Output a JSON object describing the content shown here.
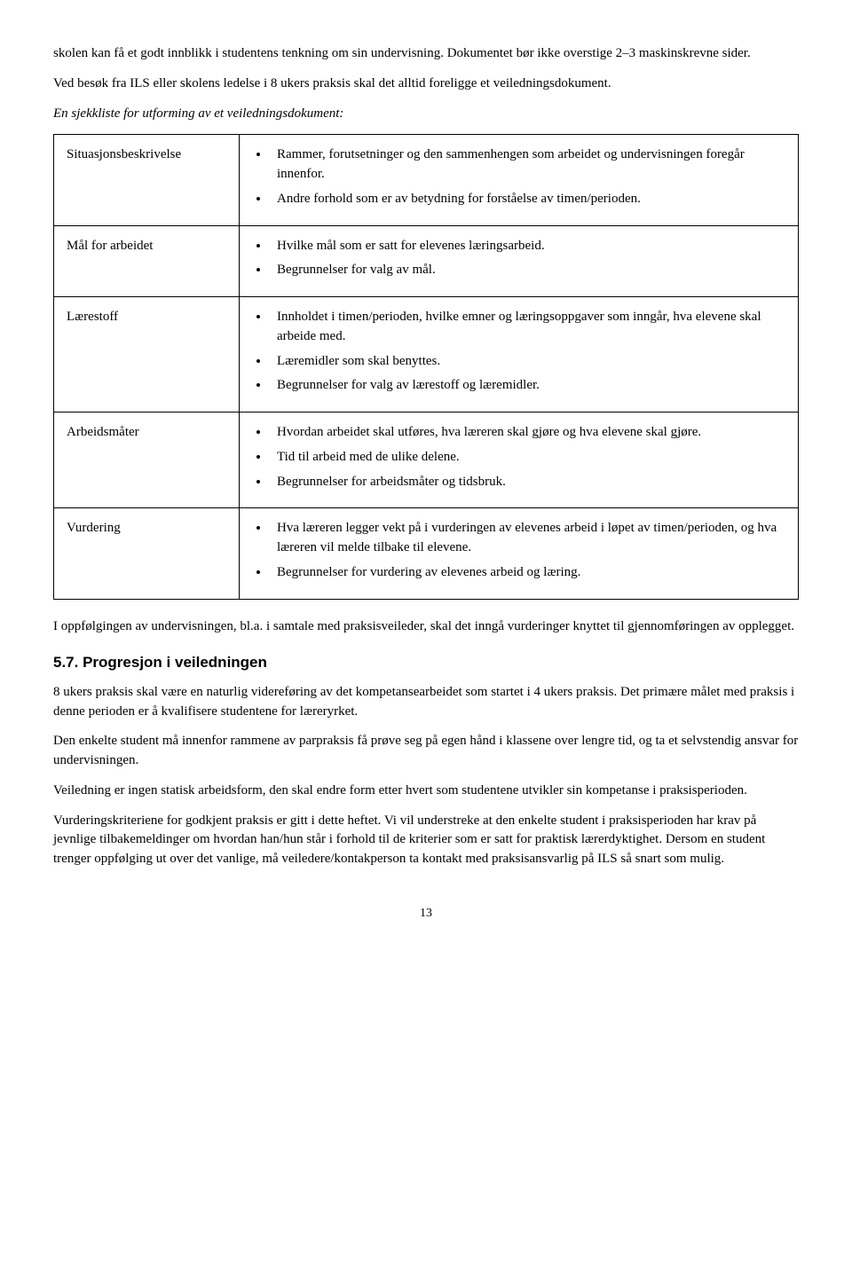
{
  "intro": {
    "p1": "skolen kan få et godt innblikk i studentens tenkning om sin undervisning. Dokumentet bør ikke overstige 2–3 maskinskrevne sider.",
    "p2": "Ved besøk fra ILS eller skolens ledelse i 8 ukers praksis skal det alltid foreligge et veiledningsdokument.",
    "p3": "En sjekkliste for utforming av et veiledningsdokument:"
  },
  "table": {
    "rows": [
      {
        "label": "Situasjonsbeskrivelse",
        "items": [
          "Rammer, forutsetninger og den sammenhengen som arbeidet og undervisningen foregår innenfor.",
          "Andre forhold som er av betydning for forståelse av timen/perioden."
        ]
      },
      {
        "label": "Mål for arbeidet",
        "items": [
          "Hvilke mål som er satt for elevenes læringsarbeid.",
          "Begrunnelser for valg av mål."
        ]
      },
      {
        "label": "Lærestoff",
        "items": [
          "Innholdet i timen/perioden, hvilke emner og læringsoppgaver som inngår, hva elevene skal arbeide med.",
          "Læremidler som skal benyttes.",
          "Begrunnelser for valg av lærestoff og læremidler."
        ]
      },
      {
        "label": "Arbeidsmåter",
        "items": [
          "Hvordan arbeidet skal utføres, hva læreren skal gjøre og hva elevene skal gjøre.",
          "Tid til arbeid med de ulike delene.",
          "Begrunnelser for arbeidsmåter og tidsbruk."
        ]
      },
      {
        "label": "Vurdering",
        "items": [
          "Hva læreren legger vekt på i vurderingen av elevenes arbeid i løpet av timen/perioden, og hva læreren vil melde tilbake til elevene.",
          "Begrunnelser for vurdering av elevenes arbeid og læring."
        ]
      }
    ]
  },
  "after": {
    "p1": "I oppfølgingen av undervisningen, bl.a. i samtale med praksisveileder, skal det inngå vurderinger knyttet til gjennomføringen av opplegget.",
    "heading": "5.7. Progresjon i veiledningen",
    "p2": "8 ukers praksis skal være en naturlig videreføring av det kompetansearbeidet som startet i 4 ukers praksis. Det primære målet med praksis i denne perioden er å kvalifisere studentene for læreryrket.",
    "p3": "Den enkelte student må innenfor rammene av parpraksis få prøve seg på egen hånd i klassene over lengre tid, og ta et selvstendig ansvar for undervisningen.",
    "p4": "Veiledning er ingen statisk arbeidsform, den skal endre form etter hvert som studentene utvikler sin kompetanse i praksisperioden.",
    "p5": "Vurderingskriteriene for godkjent praksis er gitt i dette heftet. Vi vil understreke at den enkelte student i praksisperioden har krav på jevnlige tilbakemeldinger om hvordan han/hun står i forhold til de kriterier som er satt for praktisk lærerdyktighet. Dersom en student trenger oppfølging ut over det vanlige, må veiledere/kontakperson ta kontakt med praksisansvarlig på ILS så snart som mulig."
  },
  "page": "13"
}
